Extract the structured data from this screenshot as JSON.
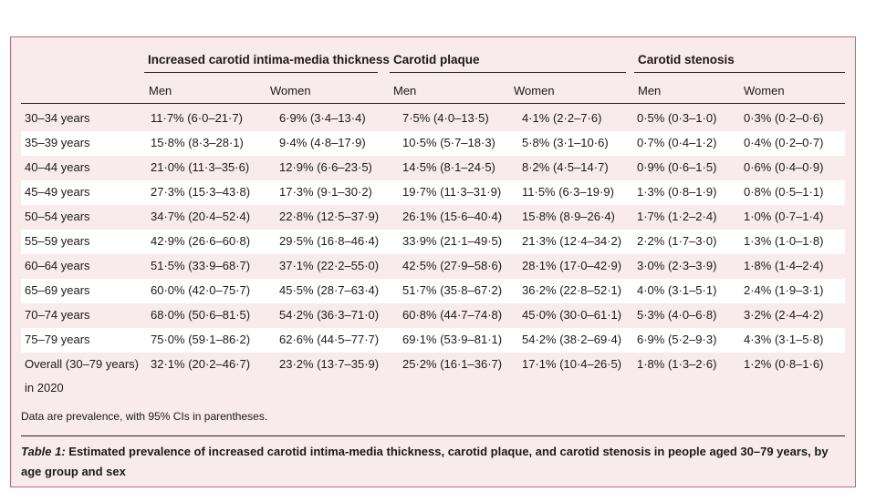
{
  "groups": {
    "cimt": "Increased carotid intima-media thickness",
    "plaque": "Carotid plaque",
    "stenosis": "Carotid stenosis"
  },
  "subheaders": [
    "Men",
    "Women",
    "Men",
    "Women",
    "Men",
    "Women"
  ],
  "rows": [
    {
      "age": "30–34 years",
      "cells": [
        "11·7% (6·0–21·7)",
        "6·9% (3·4–13·4)",
        "7·5% (4·0–13·5)",
        "4·1% (2·2–7·6)",
        "0·5% (0·3–1·0)",
        "0·3% (0·2–0·6)"
      ]
    },
    {
      "age": "35–39 years",
      "cells": [
        "15·8% (8·3–28·1)",
        "9·4% (4·8–17·9)",
        "10·5% (5·7–18·3)",
        "5·8% (3·1–10·6)",
        "0·7% (0·4–1·2)",
        "0·4% (0·2–0·7)"
      ]
    },
    {
      "age": "40–44 years",
      "cells": [
        "21·0% (11·3–35·6)",
        "12·9% (6·6–23·5)",
        "14·5% (8·1–24·5)",
        "8·2% (4·5–14·7)",
        "0·9% (0·6–1·5)",
        "0·6% (0·4–0·9)"
      ]
    },
    {
      "age": "45–49 years",
      "cells": [
        "27·3% (15·3–43·8)",
        "17·3% (9·1–30·2)",
        "19·7% (11·3–31·9)",
        "11·5% (6·3–19·9)",
        "1·3% (0·8–1·9)",
        "0·8% (0·5–1·1)"
      ]
    },
    {
      "age": "50–54 years",
      "cells": [
        "34·7% (20·4–52·4)",
        "22·8% (12·5–37·9)",
        "26·1% (15·6–40·4)",
        "15·8% (8·9–26·4)",
        "1·7% (1·2–2·4)",
        "1·0% (0·7–1·4)"
      ]
    },
    {
      "age": "55–59 years",
      "cells": [
        "42·9% (26·6–60·8)",
        "29·5% (16·8–46·4)",
        "33·9% (21·1–49·5)",
        "21·3% (12·4–34·2)",
        "2·2% (1·7–3·0)",
        "1·3% (1·0–1·8)"
      ]
    },
    {
      "age": "60–64 years",
      "cells": [
        "51·5% (33·9–68·7)",
        "37·1% (22·2–55·0)",
        "42·5% (27·9–58·6)",
        "28·1% (17·0–42·9)",
        "3·0% (2·3–3·9)",
        "1·8% (1·4–2·4)"
      ]
    },
    {
      "age": "65–69 years",
      "cells": [
        "60·0% (42·0–75·7)",
        "45·5% (28·7–63·4)",
        "51·7% (35·8–67·2)",
        "36·2% (22·8–52·1)",
        "4·0% (3·1–5·1)",
        "2·4% (1·9–3·1)"
      ]
    },
    {
      "age": "70–74 years",
      "cells": [
        "68·0% (50·6–81·5)",
        "54·2% (36·3–71·0)",
        "60·8% (44·7–74·8)",
        "45·0% (30·0–61·1)",
        "5·3% (4·0–6·8)",
        "3·2% (2·4–4·2)"
      ]
    },
    {
      "age": "75–79 years",
      "cells": [
        "75·0% (59·1–86·2)",
        "62·6% (44·5–77·7)",
        "69·1% (53·9–81·1)",
        "54·2% (38·2–69·4)",
        "6·9% (5·2–9·3)",
        "4·3% (3·1–5·8)"
      ]
    }
  ],
  "overall": {
    "label_line1": "Overall (30–79 years)",
    "label_line2": "in 2020",
    "cells": [
      "32·1% (20·2–46·7)",
      "23·2% (13·7–35·9)",
      "25·2% (16·1–36·7)",
      "17·1% (10·4–26·5)",
      "1·8% (1·3–2·6)",
      "1·2% (0·8–1·6)"
    ]
  },
  "note": "Data are prevalence, with 95% CIs in parentheses.",
  "caption": {
    "label": "Table 1:",
    "text": " Estimated prevalence of increased carotid intima-media thickness, carotid plaque, and carotid stenosis in people aged 30–79 years, by age group and sex"
  }
}
